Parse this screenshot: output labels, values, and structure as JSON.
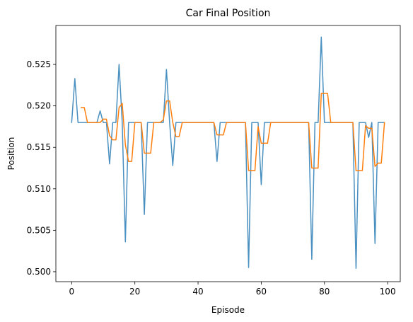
{
  "chart_data": {
    "type": "line",
    "title": "Car Final Position",
    "xlabel": "Episode",
    "ylabel": "Position",
    "xlim": [
      -5,
      104
    ],
    "ylim": [
      0.4988,
      0.5297
    ],
    "xticks": [
      0,
      20,
      40,
      60,
      80,
      100
    ],
    "yticks": [
      0.5,
      0.505,
      0.51,
      0.515,
      0.52,
      0.525
    ],
    "ytick_labels": [
      "0.500",
      "0.505",
      "0.510",
      "0.515",
      "0.520",
      "0.525"
    ],
    "grid": false,
    "legend": "none",
    "x": [
      0,
      1,
      2,
      3,
      4,
      5,
      6,
      7,
      8,
      9,
      10,
      11,
      12,
      13,
      14,
      15,
      16,
      17,
      18,
      19,
      20,
      21,
      22,
      23,
      24,
      25,
      26,
      27,
      28,
      29,
      30,
      31,
      32,
      33,
      34,
      35,
      36,
      37,
      38,
      39,
      40,
      41,
      42,
      43,
      44,
      45,
      46,
      47,
      48,
      49,
      50,
      51,
      52,
      53,
      54,
      55,
      56,
      57,
      58,
      59,
      60,
      61,
      62,
      63,
      64,
      65,
      66,
      67,
      68,
      69,
      70,
      71,
      72,
      73,
      74,
      75,
      76,
      77,
      78,
      79,
      80,
      81,
      82,
      83,
      84,
      85,
      86,
      87,
      88,
      89,
      90,
      91,
      92,
      93,
      94,
      95,
      96,
      97,
      98,
      99
    ],
    "series": [
      {
        "color": "#4a90c0",
        "values": [
          0.518,
          0.5233,
          0.518,
          0.518,
          0.518,
          0.518,
          0.518,
          0.518,
          0.518,
          0.5194,
          0.518,
          0.518,
          0.513,
          0.518,
          0.518,
          0.525,
          0.518,
          0.5036,
          0.518,
          0.518,
          0.518,
          0.518,
          0.518,
          0.5069,
          0.518,
          0.518,
          0.518,
          0.518,
          0.518,
          0.518,
          0.5244,
          0.518,
          0.5128,
          0.518,
          0.518,
          0.518,
          0.518,
          0.518,
          0.518,
          0.518,
          0.518,
          0.518,
          0.518,
          0.518,
          0.518,
          0.518,
          0.5133,
          0.518,
          0.518,
          0.518,
          0.518,
          0.518,
          0.518,
          0.518,
          0.518,
          0.518,
          0.5005,
          0.518,
          0.518,
          0.518,
          0.5105,
          0.518,
          0.518,
          0.518,
          0.518,
          0.518,
          0.518,
          0.518,
          0.518,
          0.518,
          0.518,
          0.518,
          0.518,
          0.518,
          0.518,
          0.518,
          0.5015,
          0.518,
          0.518,
          0.5283,
          0.518,
          0.518,
          0.518,
          0.518,
          0.518,
          0.518,
          0.518,
          0.518,
          0.518,
          0.518,
          0.5004,
          0.518,
          0.518,
          0.518,
          0.5162,
          0.518,
          0.5034,
          0.518,
          0.518,
          0.518
        ]
      },
      {
        "color": "#ff7f0e",
        "values": [
          null,
          null,
          null,
          0.5198,
          0.5198,
          0.518,
          0.518,
          0.518,
          0.518,
          0.518,
          0.5184,
          0.5184,
          0.5164,
          0.5159,
          0.5159,
          0.5198,
          0.5203,
          0.5153,
          0.5133,
          0.5133,
          0.518,
          0.518,
          0.518,
          0.5143,
          0.5143,
          0.5143,
          0.518,
          0.518,
          0.518,
          0.5183,
          0.5206,
          0.5206,
          0.518,
          0.5163,
          0.5163,
          0.518,
          0.518,
          0.518,
          0.518,
          0.518,
          0.518,
          0.518,
          0.518,
          0.518,
          0.518,
          0.518,
          0.5165,
          0.5165,
          0.5165,
          0.518,
          0.518,
          0.518,
          0.518,
          0.518,
          0.518,
          0.518,
          0.5122,
          0.5122,
          0.5122,
          0.5175,
          0.5155,
          0.5155,
          0.5155,
          0.518,
          0.518,
          0.518,
          0.518,
          0.518,
          0.518,
          0.518,
          0.518,
          0.518,
          0.518,
          0.518,
          0.518,
          0.518,
          0.5125,
          0.5125,
          0.5125,
          0.5215,
          0.5215,
          0.5215,
          0.518,
          0.518,
          0.518,
          0.518,
          0.518,
          0.518,
          0.518,
          0.518,
          0.5122,
          0.5122,
          0.5122,
          0.5176,
          0.5173,
          0.5173,
          0.5127,
          0.5131,
          0.5131,
          0.518
        ]
      }
    ]
  }
}
